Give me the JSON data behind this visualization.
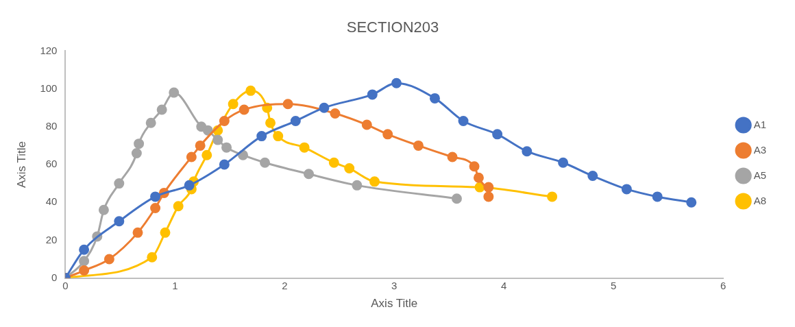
{
  "chart_data": {
    "type": "line",
    "title": "SECTION203",
    "xlabel": "Axis Title",
    "ylabel": "Axis Title",
    "xlim": [
      0,
      6
    ],
    "xticks": [
      0,
      1,
      2,
      3,
      4,
      5,
      6
    ],
    "ylim": [
      0,
      120
    ],
    "yticks": [
      0,
      20,
      40,
      60,
      80,
      100,
      120
    ],
    "grid": false,
    "legend": "right",
    "marker": "circle",
    "line_style": "solid",
    "series": [
      {
        "name": "A1",
        "color": "#4472c4",
        "x": [
          0,
          0.17,
          0.49,
          0.82,
          1.13,
          1.45,
          1.79,
          2.1,
          2.36,
          2.8,
          3.02,
          3.37,
          3.63,
          3.94,
          4.21,
          4.54,
          4.81,
          5.12,
          5.4,
          5.71
        ],
        "values": [
          0,
          15,
          30,
          43,
          49,
          60,
          75,
          83,
          90,
          97,
          103,
          95,
          83,
          76,
          67,
          61,
          54,
          47,
          43,
          40
        ]
      },
      {
        "name": "A3",
        "color": "#ed7d31",
        "x": [
          0,
          0.17,
          0.4,
          0.66,
          0.82,
          0.9,
          1.15,
          1.23,
          1.45,
          1.63,
          2.03,
          2.46,
          2.75,
          2.94,
          3.22,
          3.53,
          3.73,
          3.77,
          3.86,
          3.86
        ],
        "values": [
          0,
          4,
          10,
          24,
          37,
          45,
          64,
          70,
          83,
          89,
          92,
          87,
          81,
          76,
          70,
          64,
          59,
          53,
          48,
          43
        ]
      },
      {
        "name": "A5",
        "color": "#a5a5a5",
        "x": [
          0,
          0.15,
          0.17,
          0.29,
          0.35,
          0.49,
          0.65,
          0.67,
          0.78,
          0.88,
          0.99,
          1.24,
          1.3,
          1.39,
          1.47,
          1.62,
          1.82,
          2.22,
          2.66,
          3.57
        ],
        "values": [
          0,
          null,
          9,
          22,
          36,
          50,
          66,
          71,
          82,
          89,
          98,
          80,
          78,
          73,
          69,
          65,
          61,
          55,
          49,
          42
        ]
      },
      {
        "name": "A8",
        "color": "#ffc000",
        "x": [
          0,
          0.79,
          0.91,
          1.03,
          1.15,
          1.17,
          1.29,
          1.39,
          1.43,
          1.53,
          1.69,
          1.84,
          1.87,
          1.94,
          2.18,
          2.45,
          2.59,
          2.82,
          3.78,
          4.44
        ],
        "values": [
          0,
          11,
          24,
          38,
          47,
          51,
          65,
          78,
          null,
          92,
          99,
          90,
          82,
          75,
          69,
          61,
          58,
          51,
          48,
          43
        ]
      }
    ]
  }
}
